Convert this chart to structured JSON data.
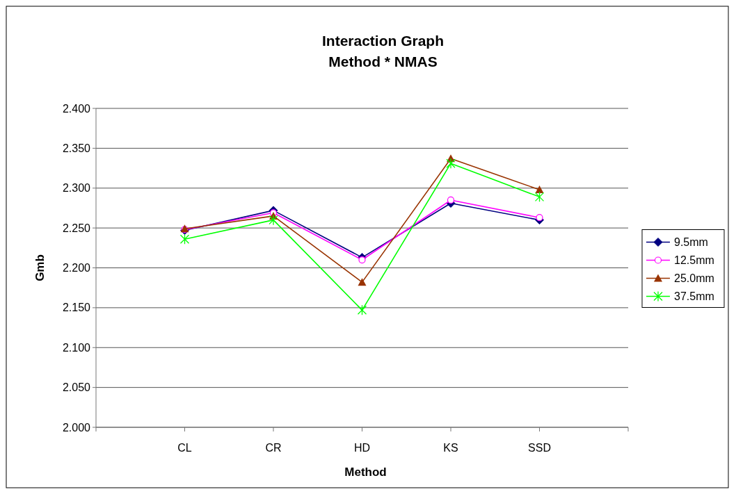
{
  "chart_data": {
    "type": "line",
    "title": "Interaction Graph",
    "subtitle": "Method * NMAS",
    "xlabel": "Method",
    "ylabel": "Gmb",
    "categories": [
      "CL",
      "CR",
      "HD",
      "KS",
      "SSD"
    ],
    "series": [
      {
        "name": "9.5mm",
        "color": "#000080",
        "marker": "diamond",
        "values": [
          2.247,
          2.272,
          2.213,
          2.281,
          2.26
        ]
      },
      {
        "name": "12.5mm",
        "color": "#ff00ff",
        "marker": "circle",
        "values": [
          2.248,
          2.269,
          2.21,
          2.285,
          2.263
        ]
      },
      {
        "name": "25.0mm",
        "color": "#993300",
        "marker": "triangle",
        "values": [
          2.249,
          2.265,
          2.182,
          2.337,
          2.298
        ]
      },
      {
        "name": "37.5mm",
        "color": "#00ff00",
        "marker": "cross",
        "values": [
          2.236,
          2.26,
          2.147,
          2.331,
          2.289
        ]
      }
    ],
    "ylim": [
      2.0,
      2.4
    ],
    "yticks": [
      {
        "value": 2.0,
        "label": "2.000"
      },
      {
        "value": 2.05,
        "label": "2.050"
      },
      {
        "value": 2.1,
        "label": "2.100"
      },
      {
        "value": 2.15,
        "label": "2.150"
      },
      {
        "value": 2.2,
        "label": "2.200"
      },
      {
        "value": 2.25,
        "label": "2.250"
      },
      {
        "value": 2.3,
        "label": "2.300"
      },
      {
        "value": 2.35,
        "label": "2.350"
      },
      {
        "value": 2.4,
        "label": "2.400"
      }
    ],
    "grid": "y",
    "legend": "right",
    "line_style": "solid"
  }
}
